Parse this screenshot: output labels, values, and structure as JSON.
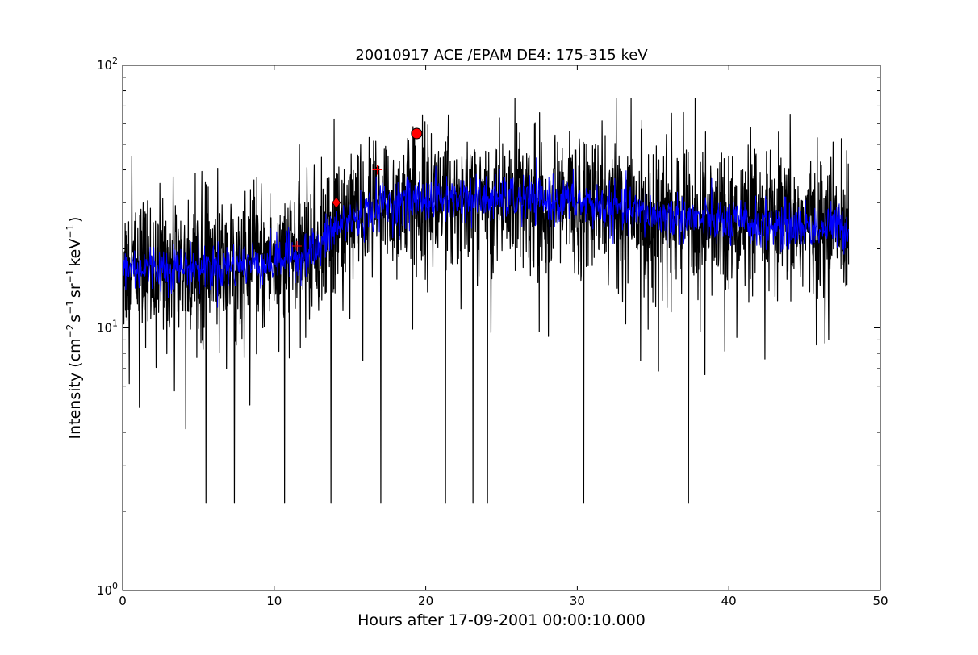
{
  "chart_data": {
    "type": "line",
    "title": "20010917 ACE /EPAM DE4: 175-315 keV",
    "xlabel": "Hours after 17-09-2001 00:00:10.000",
    "ylabel": {
      "prefix": "Intensity (cm",
      "exp1": "−2",
      "mid1": "s",
      "exp2": "−1",
      "mid2": "sr",
      "exp3": "−1",
      "mid3": "keV",
      "exp4": "−1",
      "suffix": ")"
    },
    "xlim": [
      0,
      50
    ],
    "ylim": [
      1,
      100
    ],
    "yscale": "log",
    "grid": false,
    "x_ticks": [
      "0",
      "10",
      "20",
      "30",
      "40",
      "50"
    ],
    "y_ticks": [
      {
        "base": "10",
        "exp": "0"
      },
      {
        "base": "10",
        "exp": "1"
      },
      {
        "base": "10",
        "exp": "2"
      }
    ],
    "series": [
      {
        "style": "raw",
        "color": "#000000",
        "x_range": [
          0,
          47.9
        ],
        "baseline_knots": [
          [
            0,
            17
          ],
          [
            6,
            17
          ],
          [
            10,
            18
          ],
          [
            13,
            20
          ],
          [
            14,
            24
          ],
          [
            17,
            29
          ],
          [
            20,
            31
          ],
          [
            25,
            31
          ],
          [
            30,
            30
          ],
          [
            35,
            27
          ],
          [
            40,
            25
          ],
          [
            47.9,
            24
          ]
        ],
        "spread_factor": 2.0,
        "min_level": 2.15,
        "max_level": 75
      },
      {
        "style": "smoothed",
        "color": "#0000ff",
        "x_range": [
          0,
          47.9
        ],
        "baseline_knots": [
          [
            0,
            17
          ],
          [
            6,
            17
          ],
          [
            10,
            18
          ],
          [
            13,
            20
          ],
          [
            14,
            24
          ],
          [
            17,
            29
          ],
          [
            20,
            31
          ],
          [
            25,
            31
          ],
          [
            30,
            30
          ],
          [
            35,
            27
          ],
          [
            40,
            25
          ],
          [
            47.9,
            24
          ]
        ],
        "spread_factor": 1.3
      }
    ],
    "markers": [
      {
        "shape": "circle",
        "x": 19.4,
        "y": 55,
        "color": "#ff0000"
      },
      {
        "shape": "diamond",
        "x": 14.1,
        "y": 30,
        "color": "#ff0000"
      },
      {
        "shape": "plus",
        "x": 16.8,
        "y": 40,
        "color": "#ff0000"
      },
      {
        "shape": "plus",
        "x": 11.5,
        "y": 20.5,
        "color": "#ff0000"
      }
    ]
  }
}
